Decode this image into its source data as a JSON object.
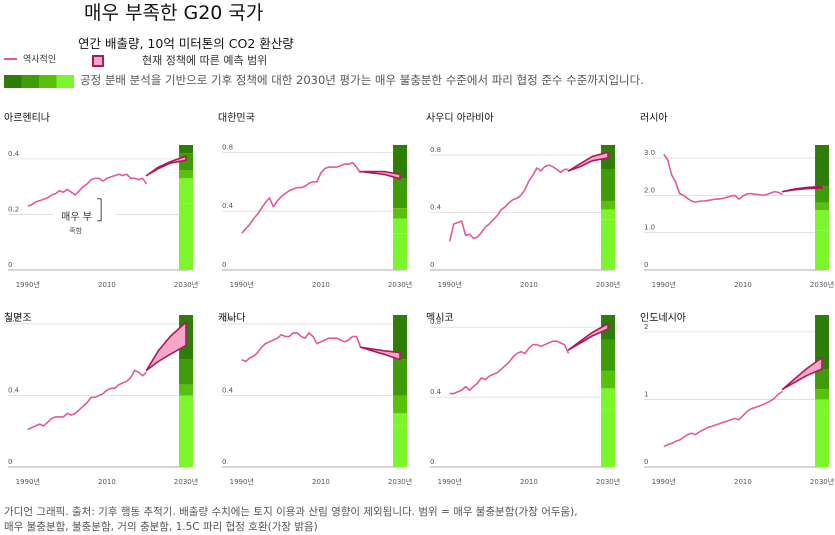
{
  "header": {
    "title": "매우 부족한 G20 국가",
    "subtitle": "연간 배출량, 10억 미터톤의 CO2 환산량"
  },
  "legend": {
    "historical_label": "역사적인",
    "range_label": "현재 정책에 따른 예측 범위",
    "fair_share_label": "공정 분배 분석을 기반으로 기후 정책에 대한 2030년 평가는 매우 불충분한 수준에서 파리 협정 준수 수준까지입니다."
  },
  "footer": {
    "line1": "가디언 그래픽. 출처: 기후 행동 추적기. 배출량 수치에는 토지 이용과 산림 영향이 제외됩니다. 범위 = 매우 불충분함(가장 어두움),",
    "line2": "매우 불충분함, 불충분함, 거의 충분함, 1.5C 파리 협정 호환(가장 밝음)"
  },
  "colors": {
    "historical": "#e2589e",
    "projection": "#b0185d",
    "projection_fill": "#f4a7c8",
    "bands": [
      "#2e7d06",
      "#3e9c07",
      "#58c20b",
      "#7cf52a"
    ]
  },
  "chart_data": [
    {
      "type": "line",
      "title": "아르헨티나",
      "ylim": [
        0,
        0.45
      ],
      "yticks": [
        0,
        0.2,
        0.4
      ],
      "ytick_labels": [
        "0",
        "0.2",
        "0.4"
      ],
      "xticks": [
        1990,
        2010,
        2030
      ],
      "xtick_labels": [
        "1990년",
        "2010",
        "2030년"
      ],
      "annotation": {
        "text": "매우 부",
        "subtext": "족함"
      },
      "historical": {
        "x": [
          1990,
          1991,
          1992,
          1993,
          1994,
          1995,
          1996,
          1997,
          1998,
          1999,
          2000,
          2001,
          2002,
          2003,
          2004,
          2005,
          2006,
          2007,
          2008,
          2009,
          2010,
          2011,
          2012,
          2013,
          2014,
          2015,
          2016,
          2017,
          2018,
          2019,
          2020
        ],
        "y": [
          0.23,
          0.235,
          0.245,
          0.25,
          0.255,
          0.26,
          0.27,
          0.275,
          0.285,
          0.28,
          0.29,
          0.28,
          0.27,
          0.285,
          0.3,
          0.31,
          0.325,
          0.33,
          0.33,
          0.32,
          0.33,
          0.335,
          0.34,
          0.345,
          0.34,
          0.345,
          0.33,
          0.33,
          0.325,
          0.33,
          0.31
        ]
      },
      "projection": {
        "x": [
          2020,
          2023,
          2026,
          2030
        ],
        "low": [
          0.34,
          0.365,
          0.385,
          0.395
        ],
        "high": [
          0.34,
          0.37,
          0.39,
          0.41
        ]
      },
      "bands": [
        {
          "label": "매우 불충분함(가장 어두움)",
          "from": 0.42,
          "to": 0.45
        },
        {
          "label": "매우 불충분함",
          "from": 0.36,
          "to": 0.42
        },
        {
          "label": "불충분함",
          "from": 0.33,
          "to": 0.36
        },
        {
          "label": "거의 충분함",
          "from": 0.24,
          "to": 0.33
        },
        {
          "label": "1.5C 파리 협정 호환(가장 밝음)",
          "from": 0,
          "to": 0.24
        }
      ]
    },
    {
      "type": "line",
      "title": "대한민국",
      "ylim": [
        0,
        0.85
      ],
      "yticks": [
        0,
        0.4,
        0.8
      ],
      "ytick_labels": [
        "0",
        "0.4",
        "0.8"
      ],
      "xticks": [
        1990,
        2010,
        2030
      ],
      "xtick_labels": [
        "1990년",
        "2010",
        "2030년"
      ],
      "historical": {
        "x": [
          1990,
          1991,
          1992,
          1993,
          1994,
          1995,
          1996,
          1997,
          1998,
          1999,
          2000,
          2001,
          2002,
          2003,
          2004,
          2005,
          2006,
          2007,
          2008,
          2009,
          2010,
          2011,
          2012,
          2013,
          2014,
          2015,
          2016,
          2017,
          2018,
          2019,
          2020
        ],
        "y": [
          0.25,
          0.28,
          0.31,
          0.35,
          0.38,
          0.42,
          0.46,
          0.49,
          0.43,
          0.47,
          0.5,
          0.52,
          0.54,
          0.55,
          0.56,
          0.56,
          0.57,
          0.59,
          0.6,
          0.6,
          0.66,
          0.69,
          0.7,
          0.7,
          0.7,
          0.71,
          0.72,
          0.72,
          0.73,
          0.7,
          0.66
        ]
      },
      "projection": {
        "x": [
          2020,
          2023,
          2026,
          2030
        ],
        "low": [
          0.67,
          0.66,
          0.65,
          0.62
        ],
        "high": [
          0.67,
          0.67,
          0.67,
          0.65
        ]
      },
      "bands": [
        {
          "label": "매우 불충분함(가장 어두움)",
          "from": 0.62,
          "to": 0.85
        },
        {
          "label": "매우 불충분함",
          "from": 0.42,
          "to": 0.62
        },
        {
          "label": "불충분함",
          "from": 0.35,
          "to": 0.42
        },
        {
          "label": "거의 충분함",
          "from": 0.25,
          "to": 0.35
        },
        {
          "label": "1.5C 파리 협정 호환(가장 밝음)",
          "from": 0,
          "to": 0.25
        }
      ]
    },
    {
      "type": "line",
      "title": "사우디 아라비아",
      "ylim": [
        0,
        0.87
      ],
      "yticks": [
        0,
        0.4,
        0.8
      ],
      "ytick_labels": [
        "0",
        "0.4",
        "0.8"
      ],
      "xticks": [
        1990,
        2010,
        2030
      ],
      "xtick_labels": [
        "1990년",
        "2010",
        "2030년"
      ],
      "historical": {
        "x": [
          1990,
          1991,
          1992,
          1993,
          1994,
          1995,
          1996,
          1997,
          1998,
          1999,
          2000,
          2001,
          2002,
          2003,
          2004,
          2005,
          2006,
          2007,
          2008,
          2009,
          2010,
          2011,
          2012,
          2013,
          2014,
          2015,
          2016,
          2017,
          2018,
          2019,
          2020
        ],
        "y": [
          0.2,
          0.32,
          0.33,
          0.34,
          0.24,
          0.25,
          0.22,
          0.23,
          0.26,
          0.3,
          0.32,
          0.35,
          0.38,
          0.42,
          0.44,
          0.47,
          0.49,
          0.5,
          0.52,
          0.56,
          0.62,
          0.66,
          0.71,
          0.69,
          0.72,
          0.73,
          0.72,
          0.7,
          0.68,
          0.7,
          0.7
        ]
      },
      "projection": {
        "x": [
          2020,
          2023,
          2026,
          2030
        ],
        "low": [
          0.69,
          0.72,
          0.76,
          0.78
        ],
        "high": [
          0.69,
          0.74,
          0.79,
          0.82
        ]
      },
      "bands": [
        {
          "label": "매우 불충분함(가장 어두움)",
          "from": 0.7,
          "to": 0.87
        },
        {
          "label": "매우 불충분함",
          "from": 0.48,
          "to": 0.7
        },
        {
          "label": "불충분함",
          "from": 0.42,
          "to": 0.48
        },
        {
          "label": "거의 충분함",
          "from": 0.35,
          "to": 0.42
        },
        {
          "label": "1.5C 파리 협정 호환(가장 밝음)",
          "from": 0,
          "to": 0.35
        }
      ]
    },
    {
      "type": "line",
      "title": "러시아",
      "ylim": [
        0,
        3.35
      ],
      "yticks": [
        0,
        1.0,
        2.0,
        3.0
      ],
      "ytick_labels": [
        "0",
        "1.0",
        "2.0",
        "3.0"
      ],
      "xticks": [
        1990,
        2010,
        2030
      ],
      "xtick_labels": [
        "1990년",
        "2010",
        "2030년"
      ],
      "historical": {
        "x": [
          1990,
          1991,
          1992,
          1993,
          1994,
          1995,
          1996,
          1997,
          1998,
          1999,
          2000,
          2001,
          2002,
          2003,
          2004,
          2005,
          2006,
          2007,
          2008,
          2009,
          2010,
          2011,
          2012,
          2013,
          2014,
          2015,
          2016,
          2017,
          2018,
          2019,
          2020
        ],
        "y": [
          3.1,
          2.95,
          2.55,
          2.35,
          2.05,
          2.0,
          1.92,
          1.85,
          1.82,
          1.84,
          1.85,
          1.86,
          1.88,
          1.9,
          1.9,
          1.92,
          1.95,
          1.98,
          2.0,
          1.9,
          1.98,
          2.04,
          2.05,
          2.03,
          2.02,
          2.0,
          2.02,
          2.06,
          2.1,
          2.08,
          2.02
        ]
      },
      "projection": {
        "x": [
          2020,
          2023,
          2026,
          2030
        ],
        "low": [
          2.1,
          2.15,
          2.18,
          2.2
        ],
        "high": [
          2.1,
          2.17,
          2.21,
          2.24
        ]
      },
      "bands": [
        {
          "label": "매우 불충분함(가장 어두움)",
          "from": 2.25,
          "to": 3.35
        },
        {
          "label": "매우 불충분함",
          "from": 1.8,
          "to": 2.25
        },
        {
          "label": "불충분함",
          "from": 1.6,
          "to": 1.8
        },
        {
          "label": "거의 충분함",
          "from": 1.05,
          "to": 1.6
        },
        {
          "label": "1.5C 파리 협정 호환(가장 밝음)",
          "from": 0,
          "to": 1.05
        }
      ]
    },
    {
      "type": "line",
      "title": "칠면조",
      "ylim": [
        0,
        0.85
      ],
      "yticks": [
        0,
        0.4,
        0.8
      ],
      "ytick_labels": [
        "0",
        "0.4",
        "0.8"
      ],
      "xticks": [
        1990,
        2010,
        2030
      ],
      "xtick_labels": [
        "1990년",
        "2010",
        "2030년"
      ],
      "historical": {
        "x": [
          1990,
          1991,
          1992,
          1993,
          1994,
          1995,
          1996,
          1997,
          1998,
          1999,
          2000,
          2001,
          2002,
          2003,
          2004,
          2005,
          2006,
          2007,
          2008,
          2009,
          2010,
          2011,
          2012,
          2013,
          2014,
          2015,
          2016,
          2017,
          2018,
          2019,
          2020
        ],
        "y": [
          0.21,
          0.22,
          0.23,
          0.24,
          0.23,
          0.25,
          0.27,
          0.28,
          0.28,
          0.28,
          0.3,
          0.29,
          0.3,
          0.32,
          0.34,
          0.36,
          0.39,
          0.39,
          0.4,
          0.41,
          0.43,
          0.44,
          0.44,
          0.46,
          0.47,
          0.48,
          0.5,
          0.54,
          0.53,
          0.51,
          0.53
        ]
      },
      "projection": {
        "x": [
          2020,
          2023,
          2026,
          2030
        ],
        "low": [
          0.54,
          0.59,
          0.63,
          0.68
        ],
        "high": [
          0.54,
          0.65,
          0.73,
          0.81
        ]
      },
      "bands": [
        {
          "label": "매우 불충분함(가장 어두움)",
          "from": 0.6,
          "to": 0.85
        },
        {
          "label": "매우 불충분함",
          "from": 0.46,
          "to": 0.6
        },
        {
          "label": "불충분함",
          "from": 0.4,
          "to": 0.46
        },
        {
          "label": "거의 충분함",
          "from": 0.35,
          "to": 0.4
        },
        {
          "label": "1.5C 파리 협정 호환(가장 밝음)",
          "from": 0,
          "to": 0.35
        }
      ]
    },
    {
      "type": "line",
      "title": "캐나다",
      "ylim": [
        0,
        0.85
      ],
      "yticks": [
        0,
        0.4,
        0.8
      ],
      "ytick_labels": [
        "0",
        "0.4",
        "0.8"
      ],
      "xticks": [
        1990,
        2010,
        2030
      ],
      "xtick_labels": [
        "1990년",
        "2010",
        "2030년"
      ],
      "historical": {
        "x": [
          1990,
          1991,
          1992,
          1993,
          1994,
          1995,
          1996,
          1997,
          1998,
          1999,
          2000,
          2001,
          2002,
          2003,
          2004,
          2005,
          2006,
          2007,
          2008,
          2009,
          2010,
          2011,
          2012,
          2013,
          2014,
          2015,
          2016,
          2017,
          2018,
          2019,
          2020
        ],
        "y": [
          0.6,
          0.59,
          0.61,
          0.62,
          0.64,
          0.67,
          0.69,
          0.7,
          0.71,
          0.72,
          0.74,
          0.73,
          0.73,
          0.75,
          0.75,
          0.73,
          0.72,
          0.75,
          0.73,
          0.69,
          0.7,
          0.71,
          0.72,
          0.72,
          0.72,
          0.71,
          0.7,
          0.71,
          0.73,
          0.73,
          0.67
        ]
      },
      "projection": {
        "x": [
          2020,
          2023,
          2026,
          2030
        ],
        "low": [
          0.67,
          0.65,
          0.63,
          0.6
        ],
        "high": [
          0.67,
          0.66,
          0.65,
          0.64
        ]
      },
      "bands": [
        {
          "label": "매우 불충분함(가장 어두움)",
          "from": 0.6,
          "to": 0.85
        },
        {
          "label": "매우 불충분함",
          "from": 0.4,
          "to": 0.6
        },
        {
          "label": "불충분함",
          "from": 0.3,
          "to": 0.4
        },
        {
          "label": "거의 충분함",
          "from": 0.23,
          "to": 0.3
        },
        {
          "label": "1.5C 파리 협정 호환(가장 밝음)",
          "from": 0,
          "to": 0.23
        }
      ]
    },
    {
      "type": "line",
      "title": "멕시코",
      "ylim": [
        0,
        0.87
      ],
      "yticks": [
        0,
        0.4,
        0.8
      ],
      "ytick_labels": [
        "0",
        "0.4",
        "0.8"
      ],
      "xticks": [
        1990,
        2010,
        2030
      ],
      "xtick_labels": [
        "1990년",
        "2010",
        "2030년"
      ],
      "historical": {
        "x": [
          1990,
          1991,
          1992,
          1993,
          1994,
          1995,
          1996,
          1997,
          1998,
          1999,
          2000,
          2001,
          2002,
          2003,
          2004,
          2005,
          2006,
          2007,
          2008,
          2009,
          2010,
          2011,
          2012,
          2013,
          2014,
          2015,
          2016,
          2017,
          2018,
          2019,
          2020
        ],
        "y": [
          0.42,
          0.42,
          0.43,
          0.44,
          0.46,
          0.44,
          0.46,
          0.48,
          0.51,
          0.5,
          0.52,
          0.53,
          0.54,
          0.56,
          0.58,
          0.6,
          0.63,
          0.65,
          0.66,
          0.65,
          0.68,
          0.7,
          0.7,
          0.69,
          0.7,
          0.71,
          0.72,
          0.72,
          0.71,
          0.7,
          0.65
        ]
      },
      "projection": {
        "x": [
          2020,
          2023,
          2026,
          2030
        ],
        "low": [
          0.67,
          0.71,
          0.75,
          0.79
        ],
        "high": [
          0.67,
          0.72,
          0.77,
          0.82
        ]
      },
      "bands": [
        {
          "label": "매우 불충분함(가장 어두움)",
          "from": 0.73,
          "to": 0.87
        },
        {
          "label": "매우 불충분함",
          "from": 0.55,
          "to": 0.73
        },
        {
          "label": "불충분함",
          "from": 0.45,
          "to": 0.55
        },
        {
          "label": "거의 충분함",
          "from": 0.33,
          "to": 0.45
        },
        {
          "label": "1.5C 파리 협정 호환(가장 밝음)",
          "from": 0,
          "to": 0.33
        }
      ]
    },
    {
      "type": "line",
      "title": "인도네시아",
      "ylim": [
        0,
        2.25
      ],
      "yticks": [
        0,
        1,
        2
      ],
      "ytick_labels": [
        "0",
        "1",
        "2"
      ],
      "xticks": [
        1990,
        2010,
        2030
      ],
      "xtick_labels": [
        "1990년",
        "2010",
        "2030년"
      ],
      "historical": {
        "x": [
          1990,
          1991,
          1992,
          1993,
          1994,
          1995,
          1996,
          1997,
          1998,
          1999,
          2000,
          2001,
          2002,
          2003,
          2004,
          2005,
          2006,
          2007,
          2008,
          2009,
          2010,
          2011,
          2012,
          2013,
          2014,
          2015,
          2016,
          2017,
          2018,
          2019,
          2020
        ],
        "y": [
          0.3,
          0.33,
          0.35,
          0.38,
          0.4,
          0.44,
          0.48,
          0.5,
          0.48,
          0.52,
          0.55,
          0.58,
          0.6,
          0.62,
          0.64,
          0.66,
          0.68,
          0.7,
          0.72,
          0.7,
          0.76,
          0.82,
          0.86,
          0.88,
          0.9,
          0.92,
          0.95,
          0.98,
          1.02,
          1.08,
          1.12
        ]
      },
      "projection": {
        "x": [
          2020,
          2023,
          2026,
          2030
        ],
        "low": [
          1.15,
          1.25,
          1.35,
          1.45
        ],
        "high": [
          1.15,
          1.3,
          1.45,
          1.62
        ]
      },
      "bands": [
        {
          "label": "매우 불충분함(가장 어두움)",
          "from": 1.45,
          "to": 2.25
        },
        {
          "label": "매우 불충분함",
          "from": 1.15,
          "to": 1.45
        },
        {
          "label": "불충분함",
          "from": 1.0,
          "to": 1.15
        },
        {
          "label": "거의 충분함",
          "from": 0.85,
          "to": 1.0
        },
        {
          "label": "1.5C 파리 협정 호환(가장 밝음)",
          "from": 0,
          "to": 0.85
        }
      ]
    }
  ]
}
